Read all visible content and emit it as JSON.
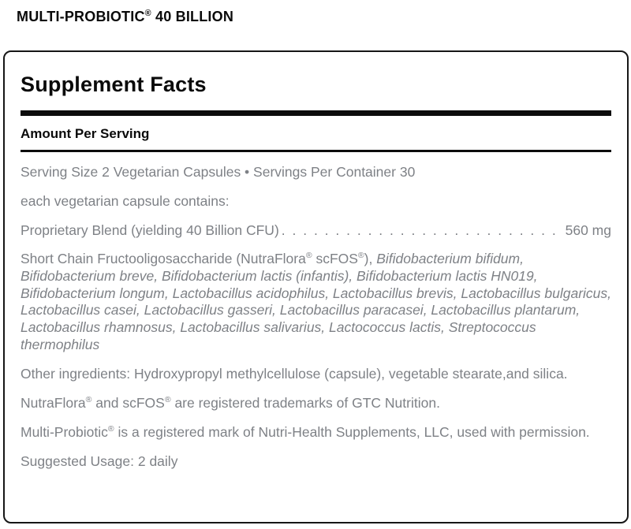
{
  "sym": {
    "reg": "®"
  },
  "title": {
    "name": "MULTI-PROBIOTIC",
    "rest": " 40 BILLION"
  },
  "panel": {
    "heading": "Supplement Facts",
    "amount_header": "Amount Per Serving",
    "serving_line": "Serving Size 2 Vegetarian Capsules • Servings Per Container 30",
    "contains_line": "each vegetarian capsule contains:",
    "blend": {
      "label": "Proprietary Blend (yielding 40 Billion CFU)",
      "leader_dots": ". . . . . . . . . . . . . . . . . . . . . . . . . . . . . . . . . . . . . . . . . . . . . . . . . . . . . . . . . . . . . . . . . . . .",
      "amount": "560 mg"
    },
    "ingredients": {
      "lead_1": "Short Chain Fructooligosaccharide (NutraFlora",
      "lead_2": " scFOS",
      "lead_3": "), ",
      "species": "Bifidobacterium bifidum, Bifidobacterium breve, Bifidobacterium lactis (infantis), Bifidobacterium lactis HN019, Bifidobacterium longum, Lactobacillus acidophilus, Lactobacillus brevis, Lactobacillus bulgaricus, Lactobacillus casei, Lactobacillus gasseri, Lactobacillus paracasei, Lactobacillus plantarum, Lactobacillus rhamnosus, Lactobacillus salivarius, Lactococcus lactis, Streptococcus thermophilus"
    },
    "other_ingredients": "Other ingredients: Hydroxypropyl methylcellulose (capsule), vegetable stearate,and silica.",
    "trademark": {
      "part_1": "NutraFlora",
      "part_2": " and scFOS",
      "part_3": " are registered trademarks of GTC Nutrition."
    },
    "registered_mark": {
      "part_1": "Multi-Probiotic",
      "part_2": " is a registered mark of Nutri-Health Supplements, LLC, used with permission."
    },
    "suggested_usage": "Suggested Usage: 2 daily"
  },
  "colors": {
    "text_primary": "#0a0a0a",
    "text_secondary": "#7e8186",
    "panel_border": "#161616",
    "divider": "#0c0c0c",
    "background": "#ffffff"
  }
}
